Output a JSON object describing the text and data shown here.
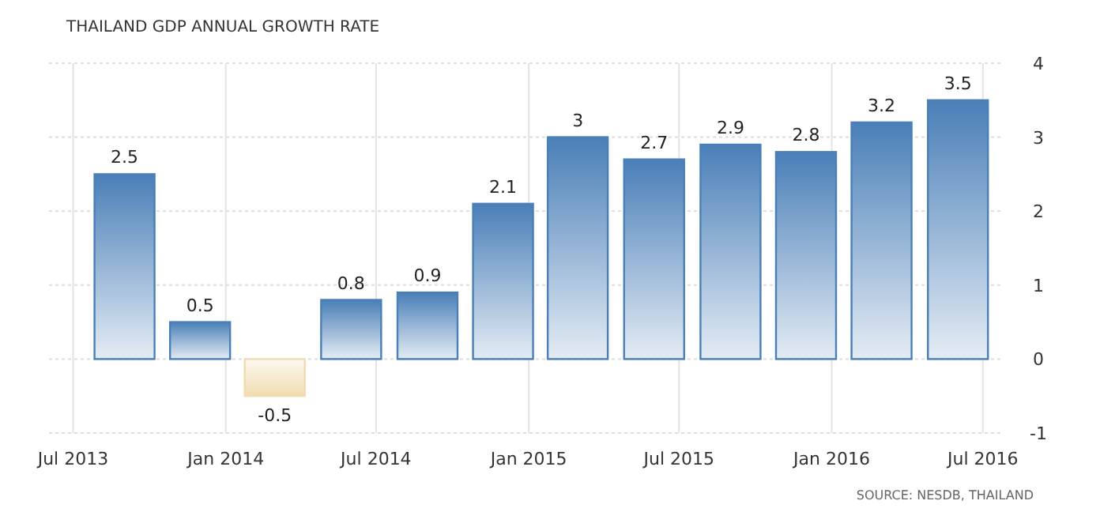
{
  "chart_data": {
    "type": "bar",
    "title": "THAILAND GDP ANNUAL GROWTH RATE",
    "x": [
      "2013-09-01",
      "2013-12-01",
      "2014-03-01",
      "2014-06-01",
      "2014-09-01",
      "2014-12-01",
      "2015-03-01",
      "2015-06-01",
      "2015-09-01",
      "2015-12-01",
      "2016-03-01",
      "2016-06-01"
    ],
    "values": [
      2.5,
      0.5,
      -0.5,
      0.8,
      0.9,
      2.1,
      3,
      2.7,
      2.9,
      2.8,
      3.2,
      3.5
    ],
    "colors": [
      "#4a7fb8",
      "#4a7fb8",
      "#f0dcb0",
      "#4a7fb8",
      "#4a7fb8",
      "#4a7fb8",
      "#4a7fb8",
      "#4a7fb8",
      "#4a7fb8",
      "#4a7fb8",
      "#4a7fb8",
      "#4a7fb8"
    ],
    "xlim": [
      "2013-06-02",
      "2016-07-26"
    ],
    "xticks": [
      {
        "value": "2013-07-01",
        "label": "Jul 2013"
      },
      {
        "value": "2014-01-01",
        "label": "Jan 2014"
      },
      {
        "value": "2014-07-01",
        "label": "Jul 2014"
      },
      {
        "value": "2015-01-01",
        "label": "Jan 2015"
      },
      {
        "value": "2015-07-01",
        "label": "Jul 2015"
      },
      {
        "value": "2016-01-01",
        "label": "Jan 2016"
      },
      {
        "value": "2016-07-01",
        "label": "Jul 2016"
      }
    ],
    "ylim": [
      -1,
      4
    ],
    "yticks": [
      -1,
      0,
      1,
      2,
      3,
      4
    ],
    "grid": true,
    "data_labels": true,
    "annotations": [
      "SOURCE: NESDB, THAILAND"
    ]
  }
}
